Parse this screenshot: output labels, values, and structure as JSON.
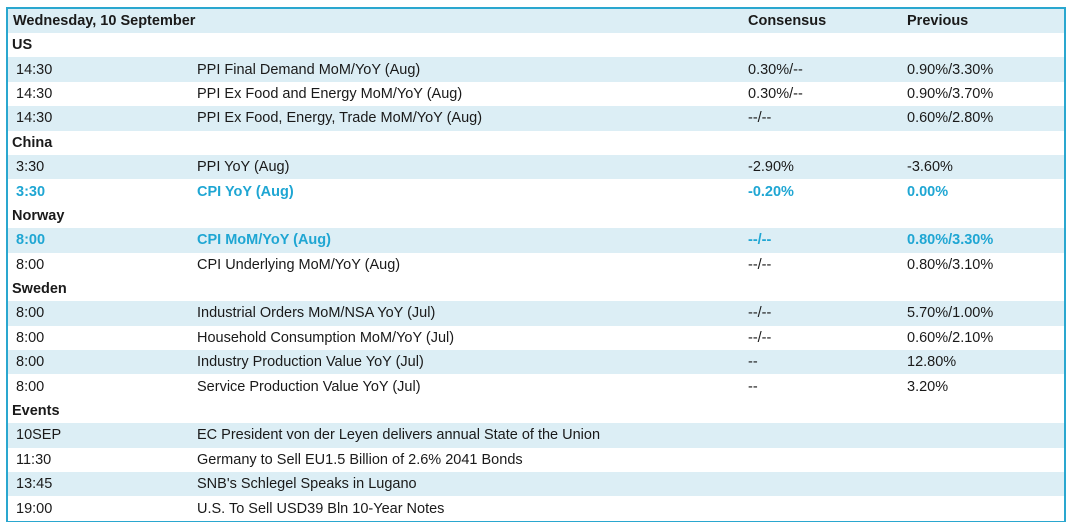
{
  "header": {
    "date": "Wednesday, 10 September",
    "consensus": "Consensus",
    "previous": "Previous"
  },
  "sections": [
    {
      "name": "US",
      "rows": [
        {
          "time": "14:30",
          "event": "PPI Final Demand MoM/YoY (Aug)",
          "consensus": "0.30%/--",
          "previous": "0.90%/3.30%",
          "highlight": false
        },
        {
          "time": "14:30",
          "event": "PPI Ex Food and Energy MoM/YoY (Aug)",
          "consensus": "0.30%/--",
          "previous": "0.90%/3.70%",
          "highlight": false
        },
        {
          "time": "14:30",
          "event": "PPI Ex Food, Energy, Trade MoM/YoY (Aug)",
          "consensus": "--/--",
          "previous": "0.60%/2.80%",
          "highlight": false
        }
      ]
    },
    {
      "name": "China",
      "rows": [
        {
          "time": "3:30",
          "event": "PPI YoY (Aug)",
          "consensus": "-2.90%",
          "previous": "-3.60%",
          "highlight": false
        },
        {
          "time": "3:30",
          "event": "CPI YoY (Aug)",
          "consensus": "-0.20%",
          "previous": "0.00%",
          "highlight": true
        }
      ]
    },
    {
      "name": "Norway",
      "rows": [
        {
          "time": "8:00",
          "event": "CPI MoM/YoY (Aug)",
          "consensus": "--/--",
          "previous": "0.80%/3.30%",
          "highlight": true
        },
        {
          "time": "8:00",
          "event": "CPI Underlying MoM/YoY (Aug)",
          "consensus": "--/--",
          "previous": "0.80%/3.10%",
          "highlight": false
        }
      ]
    },
    {
      "name": "Sweden",
      "rows": [
        {
          "time": "8:00",
          "event": "Industrial Orders MoM/NSA YoY (Jul)",
          "consensus": "--/--",
          "previous": "5.70%/1.00%",
          "highlight": false
        },
        {
          "time": "8:00",
          "event": "Household Consumption MoM/YoY (Jul)",
          "consensus": "--/--",
          "previous": "0.60%/2.10%",
          "highlight": false
        },
        {
          "time": "8:00",
          "event": "Industry Production Value YoY (Jul)",
          "consensus": "--",
          "previous": "12.80%",
          "highlight": false
        },
        {
          "time": "8:00",
          "event": "Service Production Value YoY (Jul)",
          "consensus": "--",
          "previous": "3.20%",
          "highlight": false
        }
      ]
    },
    {
      "name": "Events",
      "rows": [
        {
          "time": "10SEP",
          "event": "EC President von der Leyen delivers annual State of the Union",
          "consensus": "",
          "previous": "",
          "highlight": false
        },
        {
          "time": "11:30",
          "event": "Germany to Sell EU1.5 Billion of 2.6% 2041 Bonds",
          "consensus": "",
          "previous": "",
          "highlight": false
        },
        {
          "time": "13:45",
          "event": "SNB's Schlegel Speaks in Lugano",
          "consensus": "",
          "previous": "",
          "highlight": false
        },
        {
          "time": "19:00",
          "event": "U.S. To Sell USD39 Bln 10-Year Notes",
          "consensus": "",
          "previous": "",
          "highlight": false
        }
      ]
    }
  ],
  "colors": {
    "border": "#2aa7cf",
    "band": "#dceef5",
    "highlight": "#1fa6d3"
  }
}
